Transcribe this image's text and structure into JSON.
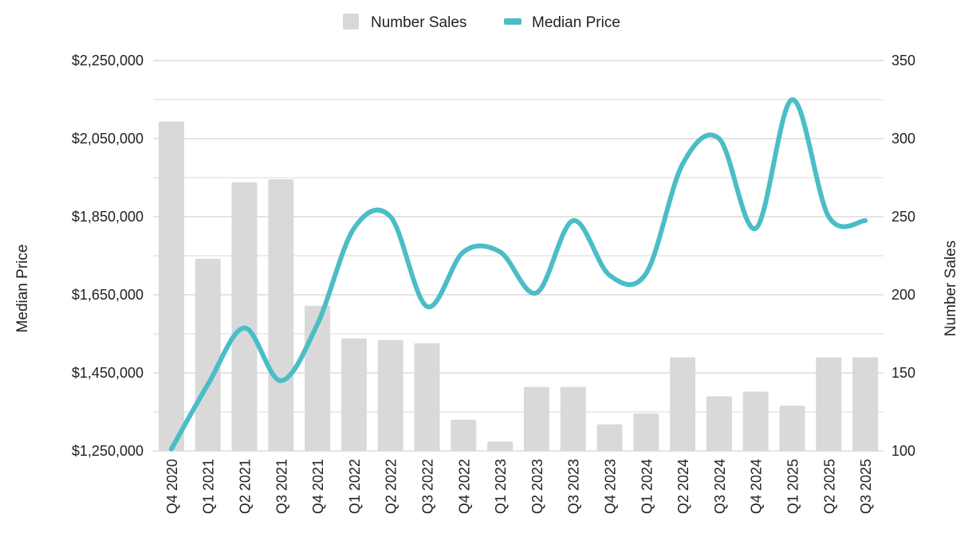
{
  "chart_data": {
    "type": "bar+line",
    "categories": [
      "Q4 2020",
      "Q1 2021",
      "Q2 2021",
      "Q3 2021",
      "Q4 2021",
      "Q1 2022",
      "Q2 2022",
      "Q3 2022",
      "Q4 2022",
      "Q1 2023",
      "Q2 2023",
      "Q3 2023",
      "Q4 2023",
      "Q1 2024",
      "Q2 2024",
      "Q3 2024",
      "Q4 2024",
      "Q1 2025",
      "Q2 2025",
      "Q3 2025"
    ],
    "series": [
      {
        "name": "Number Sales",
        "type": "bar",
        "axis": "right",
        "color": "#d9d9d9",
        "values": [
          311,
          223,
          272,
          274,
          193,
          172,
          171,
          169,
          120,
          106,
          141,
          141,
          117,
          124,
          160,
          135,
          138,
          129,
          160,
          160
        ]
      },
      {
        "name": "Median Price",
        "type": "line",
        "axis": "left",
        "color": "#4bbdc6",
        "values": [
          1255000,
          1420000,
          1565000,
          1430000,
          1575000,
          1820000,
          1850000,
          1620000,
          1760000,
          1760000,
          1655000,
          1840000,
          1700000,
          1705000,
          1985000,
          2050000,
          1820000,
          2150000,
          1850000,
          1840000
        ]
      }
    ],
    "y_left": {
      "label": "Median Price",
      "min": 1250000,
      "max": 2250000,
      "ticks": [
        "$1,250,000",
        "$1,450,000",
        "$1,650,000",
        "$1,850,000",
        "$2,050,000",
        "$2,250,000"
      ]
    },
    "y_right": {
      "label": "Number Sales",
      "min": 100,
      "max": 350,
      "ticks": [
        "100",
        "150",
        "200",
        "250",
        "300",
        "350"
      ]
    },
    "grid": true,
    "legend": {
      "position": "top-center",
      "entries": [
        "Number Sales",
        "Median Price"
      ]
    }
  }
}
